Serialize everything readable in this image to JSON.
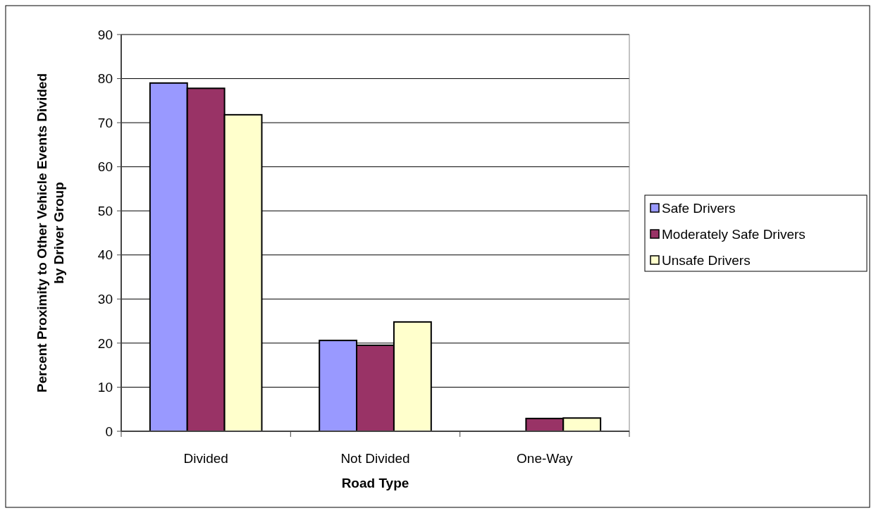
{
  "chart_data": {
    "type": "bar",
    "xlabel": "Road Type",
    "ylabel": "Percent Proximity to Other Vehicle Events Divided by Driver Group",
    "categories": [
      "Divided",
      "Not Divided",
      "One-Way"
    ],
    "series": [
      {
        "name": "Safe Drivers",
        "color": "#9999ff",
        "values": [
          79,
          20.6,
          0
        ]
      },
      {
        "name": "Moderately Safe Drivers",
        "color": "#993366",
        "values": [
          77.8,
          19.5,
          2.9
        ]
      },
      {
        "name": "Unsafe Drivers",
        "color": "#ffffcc",
        "values": [
          71.8,
          24.8,
          3
        ]
      }
    ],
    "ylim": [
      0,
      90
    ],
    "yticks": [
      0,
      10,
      20,
      30,
      40,
      50,
      60,
      70,
      80,
      90
    ],
    "grid": "y",
    "legend": "right"
  }
}
